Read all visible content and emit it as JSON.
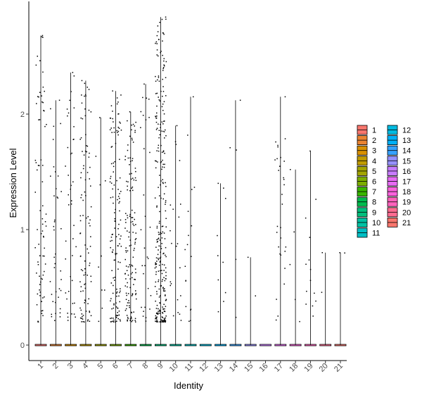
{
  "chart_data": {
    "type": "violin",
    "title": "",
    "xlabel": "Identity",
    "ylabel": "Expression Level",
    "ylim": [
      -0.1,
      2.9
    ],
    "y_ticks": [
      0,
      1,
      2
    ],
    "grid": false,
    "legend_position": "right",
    "categories": [
      "1",
      "2",
      "3",
      "4",
      "5",
      "6",
      "7",
      "8",
      "9",
      "10",
      "11",
      "12",
      "13",
      "14",
      "15",
      "16",
      "17",
      "18",
      "19",
      "20",
      "21"
    ],
    "colors": [
      "#F8766D",
      "#EA8331",
      "#D89000",
      "#C09B00",
      "#A3A500",
      "#7CAE00",
      "#39B600",
      "#00BB4E",
      "#00BF7D",
      "#00C1A3",
      "#00BFC4",
      "#00BAE0",
      "#00B0F6",
      "#35A2FF",
      "#9590FF",
      "#C77CFF",
      "#E76BF3",
      "#FA62DB",
      "#FF62BC",
      "#FF6C91",
      "#F8766D"
    ],
    "max_expression": [
      2.68,
      2.12,
      2.36,
      2.29,
      1.97,
      2.2,
      2.02,
      2.26,
      2.84,
      1.9,
      2.15,
      0.0,
      1.4,
      2.12,
      0.76,
      0.0,
      2.15,
      1.52,
      1.68,
      0.8,
      0.8
    ],
    "expressing_cells": [
      75,
      40,
      42,
      100,
      10,
      140,
      140,
      30,
      280,
      22,
      18,
      0,
      10,
      5,
      2,
      0,
      30,
      5,
      14,
      2,
      2
    ]
  }
}
